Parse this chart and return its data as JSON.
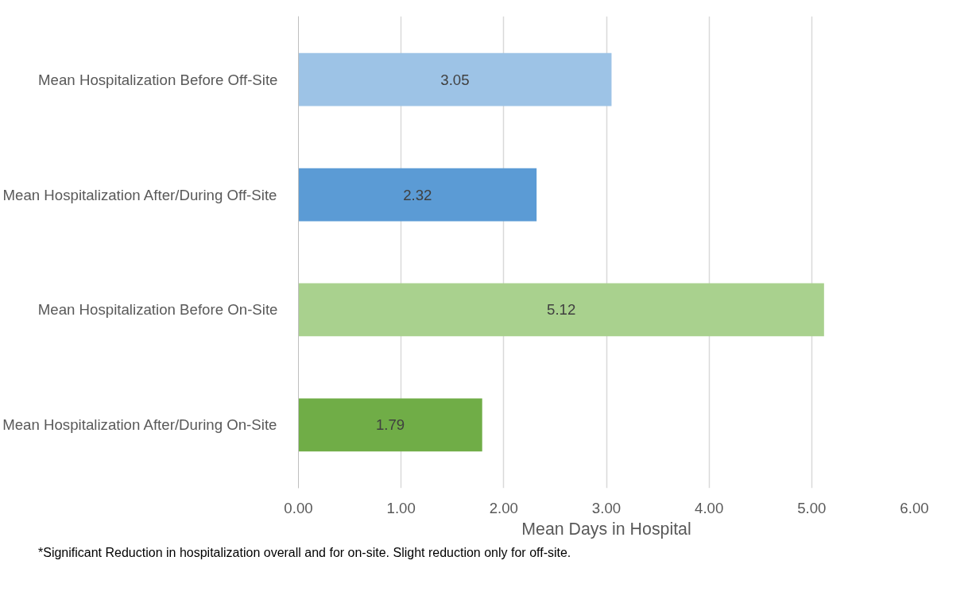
{
  "chart_data": {
    "type": "bar",
    "orientation": "horizontal",
    "categories": [
      "Mean Hospitalization Before Off-Site",
      "Mean Hospitalization After/During Off-Site",
      "Mean Hospitalization Before On-Site",
      "Mean Hospitalization After/During On-Site"
    ],
    "values": [
      3.05,
      2.32,
      5.12,
      1.79
    ],
    "colors": [
      "#9dc3e6",
      "#5b9bd5",
      "#a9d18e",
      "#70ad47"
    ],
    "data_labels": true,
    "xlabel": "Mean Days in Hospital",
    "xlim": [
      0,
      6
    ],
    "xticks": [
      {
        "value": 0,
        "label": "0.00"
      },
      {
        "value": 1,
        "label": "1.00"
      },
      {
        "value": 2,
        "label": "2.00"
      },
      {
        "value": 3,
        "label": "3.00"
      },
      {
        "value": 4,
        "label": "4.00"
      },
      {
        "value": 5,
        "label": "5.00"
      },
      {
        "value": 6,
        "label": "6.00"
      }
    ],
    "grid": "x",
    "annotations": [
      "*Significant Reduction in hospitalization overall and for on-site. Slight reduction only for off-site."
    ]
  }
}
